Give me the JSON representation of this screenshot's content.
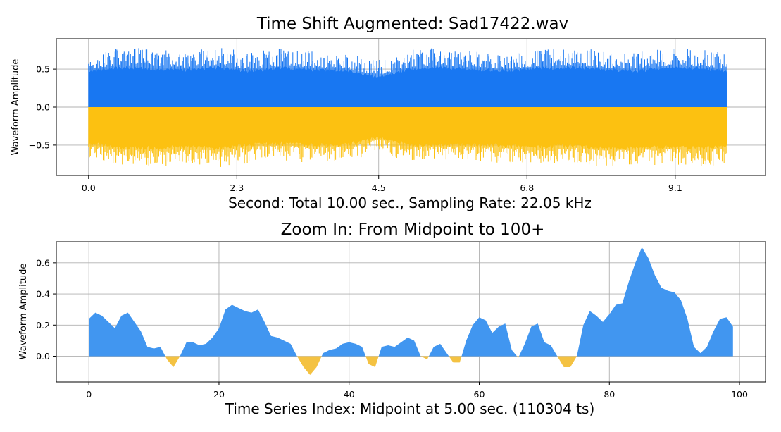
{
  "chart_data": [
    {
      "type": "area",
      "title": "Time Shift Augmented: Sad17422.wav",
      "xlabel": "Second: Total 10.00 sec., Sampling Rate: 22.05 kHz",
      "ylabel": "Waveform Amplitude",
      "xlim": [
        -0.5,
        10.5
      ],
      "ylim": [
        -0.9,
        0.9
      ],
      "x_ticks": [
        {
          "value": 0.0,
          "label": "0.0"
        },
        {
          "value": 2.3,
          "label": "2.3"
        },
        {
          "value": 4.5,
          "label": "4.5"
        },
        {
          "value": 6.8,
          "label": "6.8"
        },
        {
          "value": 9.1,
          "label": "9.1"
        }
      ],
      "y_ticks": [
        {
          "value": 0.5,
          "label": "0.5"
        },
        {
          "value": 0.0,
          "label": "0.0"
        },
        {
          "value": -0.5,
          "label": "−0.5"
        }
      ],
      "grid": true,
      "colors": {
        "positive": "#1877f2",
        "negative": "#fcc111"
      },
      "x_seconds": [
        0.0,
        0.5,
        1.0,
        1.5,
        2.0,
        2.5,
        3.0,
        3.5,
        4.0,
        4.5,
        5.0,
        5.5,
        6.0,
        6.5,
        7.0,
        7.5,
        8.0,
        8.5,
        9.0,
        9.5,
        9.9
      ],
      "upper_envelope": [
        0.68,
        0.8,
        0.76,
        0.74,
        0.8,
        0.72,
        0.78,
        0.74,
        0.72,
        0.62,
        0.76,
        0.78,
        0.74,
        0.7,
        0.76,
        0.78,
        0.76,
        0.72,
        0.78,
        0.78,
        0.7
      ],
      "lower_envelope": [
        -0.66,
        -0.78,
        -0.8,
        -0.76,
        -0.8,
        -0.74,
        -0.7,
        -0.74,
        -0.72,
        -0.6,
        -0.74,
        -0.72,
        -0.72,
        -0.74,
        -0.76,
        -0.74,
        -0.8,
        -0.78,
        -0.76,
        -0.8,
        -0.76
      ],
      "dense_upper_envelope": [
        0.5,
        0.55,
        0.53,
        0.52,
        0.55,
        0.5,
        0.54,
        0.52,
        0.5,
        0.42,
        0.53,
        0.55,
        0.52,
        0.5,
        0.54,
        0.55,
        0.52,
        0.5,
        0.55,
        0.54,
        0.5
      ],
      "dense_lower_envelope": [
        -0.5,
        -0.56,
        -0.57,
        -0.55,
        -0.57,
        -0.52,
        -0.5,
        -0.53,
        -0.52,
        -0.42,
        -0.53,
        -0.52,
        -0.52,
        -0.54,
        -0.55,
        -0.53,
        -0.57,
        -0.56,
        -0.55,
        -0.57,
        -0.54
      ]
    },
    {
      "type": "area",
      "title": "Zoom In: From Midpoint to 100+",
      "xlabel": "Time Series Index: Midpoint at 5.00 sec. (110304 ts)",
      "ylabel": "Waveform Amplitude",
      "xlim": [
        -5,
        104
      ],
      "ylim": [
        -0.165,
        0.735
      ],
      "x_ticks": [
        {
          "value": 0,
          "label": "0"
        },
        {
          "value": 20,
          "label": "20"
        },
        {
          "value": 40,
          "label": "40"
        },
        {
          "value": 60,
          "label": "60"
        },
        {
          "value": 80,
          "label": "80"
        },
        {
          "value": 100,
          "label": "100"
        }
      ],
      "y_ticks": [
        {
          "value": 0.6,
          "label": "0.6"
        },
        {
          "value": 0.4,
          "label": "0.4"
        },
        {
          "value": 0.2,
          "label": "0.2"
        },
        {
          "value": 0.0,
          "label": "0.0"
        }
      ],
      "grid": true,
      "colors": {
        "positive": "#4196f0",
        "negative": "#f4c242"
      },
      "x": [
        0,
        1,
        2,
        3,
        4,
        5,
        6,
        7,
        8,
        9,
        10,
        11,
        12,
        13,
        14,
        15,
        16,
        17,
        18,
        19,
        20,
        21,
        22,
        23,
        24,
        25,
        26,
        27,
        28,
        29,
        30,
        31,
        32,
        33,
        34,
        35,
        36,
        37,
        38,
        39,
        40,
        41,
        42,
        43,
        44,
        45,
        46,
        47,
        48,
        49,
        50,
        51,
        52,
        53,
        54,
        55,
        56,
        57,
        58,
        59,
        60,
        61,
        62,
        63,
        64,
        65,
        66,
        67,
        68,
        69,
        70,
        71,
        72,
        73,
        74,
        75,
        76,
        77,
        78,
        79,
        80,
        81,
        82,
        83,
        84,
        85,
        86,
        87,
        88,
        89,
        90,
        91,
        92,
        93,
        94,
        95,
        96,
        97,
        98,
        99
      ],
      "values": [
        0.24,
        0.28,
        0.26,
        0.22,
        0.18,
        0.26,
        0.28,
        0.22,
        0.16,
        0.06,
        0.05,
        0.06,
        -0.02,
        -0.07,
        0.0,
        0.09,
        0.09,
        0.07,
        0.08,
        0.12,
        0.18,
        0.3,
        0.33,
        0.31,
        0.29,
        0.28,
        0.3,
        0.22,
        0.13,
        0.12,
        0.1,
        0.08,
        0.0,
        -0.07,
        -0.12,
        -0.07,
        0.02,
        0.04,
        0.05,
        0.08,
        0.09,
        0.08,
        0.06,
        -0.05,
        -0.07,
        0.06,
        0.07,
        0.06,
        0.09,
        0.12,
        0.1,
        0.0,
        -0.02,
        0.06,
        0.08,
        0.02,
        -0.04,
        -0.04,
        0.1,
        0.2,
        0.25,
        0.23,
        0.15,
        0.19,
        0.21,
        0.04,
        -0.01,
        0.08,
        0.19,
        0.21,
        0.09,
        0.07,
        0.0,
        -0.07,
        -0.07,
        0.0,
        0.2,
        0.29,
        0.26,
        0.22,
        0.27,
        0.33,
        0.34,
        0.48,
        0.6,
        0.7,
        0.63,
        0.52,
        0.44,
        0.42,
        0.41,
        0.36,
        0.24,
        0.06,
        0.02,
        0.06,
        0.16,
        0.24,
        0.25,
        0.19
      ]
    }
  ]
}
